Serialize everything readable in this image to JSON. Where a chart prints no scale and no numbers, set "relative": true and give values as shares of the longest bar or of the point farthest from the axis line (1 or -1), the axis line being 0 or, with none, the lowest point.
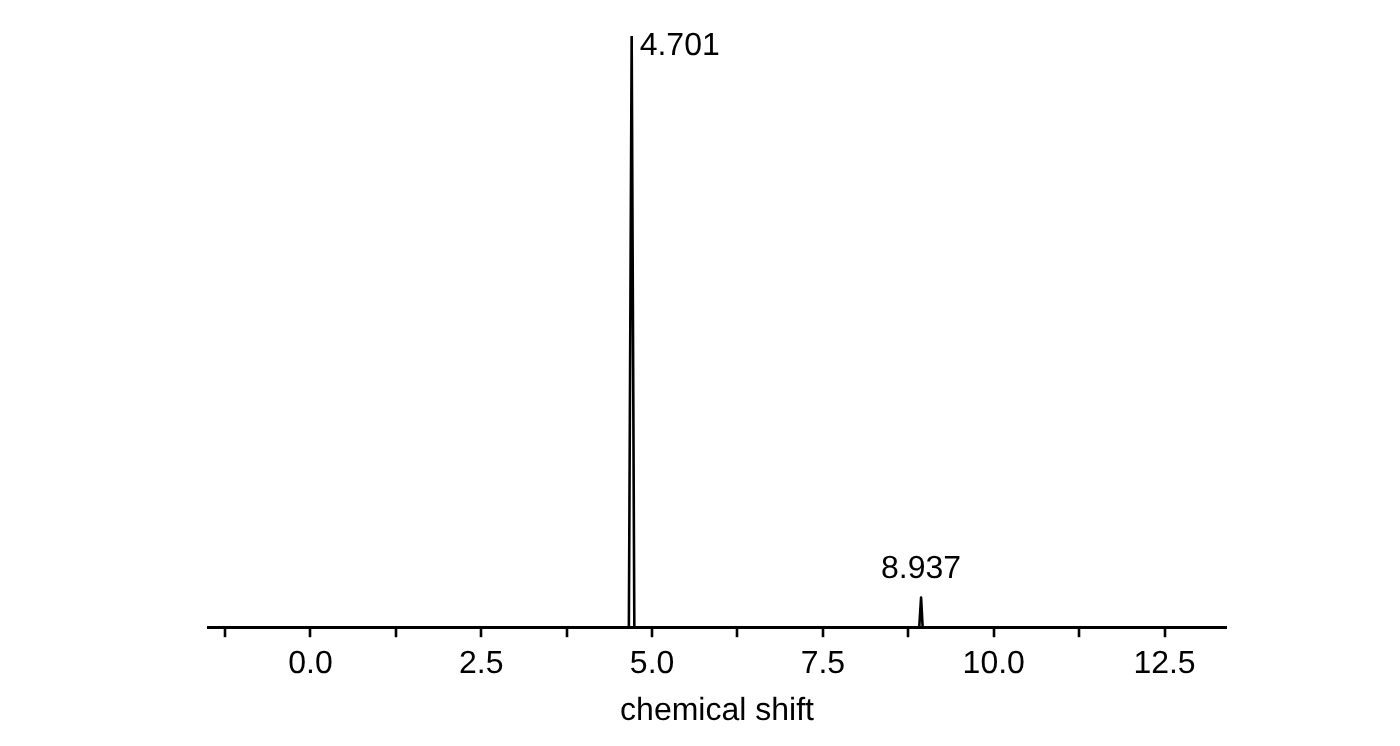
{
  "chart_data": {
    "type": "line",
    "xlabel": "chemical shift",
    "relative": true,
    "series": [
      {
        "color": "#000000",
        "x": [
          -1.5,
          4.66,
          4.701,
          4.74,
          8.91,
          8.937,
          8.96,
          13.4
        ],
        "values": [
          0,
          0,
          1,
          0,
          0,
          0.05,
          0,
          0
        ]
      }
    ],
    "xlim": [
      -1.5,
      13.4
    ],
    "xticks": [
      {
        "value": -1.25,
        "label": null
      },
      {
        "value": 0,
        "label": "0.0"
      },
      {
        "value": 1.25,
        "label": null
      },
      {
        "value": 2.5,
        "label": "2.5"
      },
      {
        "value": 3.75,
        "label": null
      },
      {
        "value": 5,
        "label": "5.0"
      },
      {
        "value": 6.25,
        "label": null
      },
      {
        "value": 7.5,
        "label": "7.5"
      },
      {
        "value": 8.75,
        "label": null
      },
      {
        "value": 10,
        "label": "10.0"
      },
      {
        "value": 11.25,
        "label": null
      },
      {
        "value": 12.5,
        "label": "12.5"
      }
    ],
    "annotations": [
      {
        "text": "4.701",
        "x": 4.701,
        "y": 1
      },
      {
        "text": "8.937",
        "x": 8.937,
        "y": 0.05
      }
    ],
    "grid": false,
    "legend": false,
    "marker": "none",
    "line_style": "solid"
  }
}
